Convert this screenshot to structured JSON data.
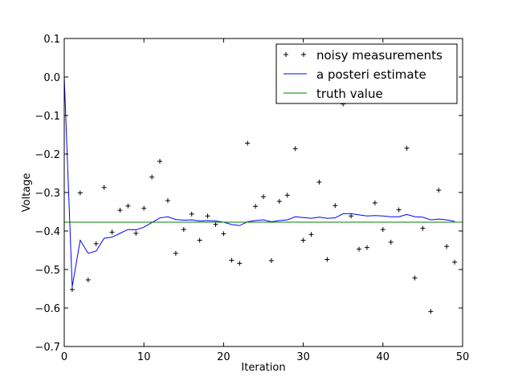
{
  "chart_data": {
    "type": "line",
    "title": "",
    "xlabel": "Iteration",
    "ylabel": "Voltage",
    "xlim": [
      0,
      50
    ],
    "ylim": [
      -0.7,
      0.1
    ],
    "x_ticks": [
      0,
      10,
      20,
      30,
      40,
      50
    ],
    "x_tick_labels": [
      "0",
      "10",
      "20",
      "30",
      "40",
      "50"
    ],
    "y_ticks": [
      -0.7,
      -0.6,
      -0.5,
      -0.4,
      -0.3,
      -0.2,
      -0.1,
      0.0,
      0.1
    ],
    "y_tick_labels": [
      "−0.7",
      "−0.6",
      "−0.5",
      "−0.4",
      "−0.3",
      "−0.2",
      "−0.1",
      "0.0",
      "0.1"
    ],
    "grid": false,
    "legend_position": "top-right",
    "series": [
      {
        "name": "noisy measurements",
        "style": "marker-plus",
        "color": "#000000",
        "x": [
          1,
          2,
          3,
          4,
          5,
          6,
          7,
          8,
          9,
          10,
          11,
          12,
          13,
          14,
          15,
          16,
          17,
          18,
          19,
          20,
          21,
          22,
          23,
          24,
          25,
          26,
          27,
          28,
          29,
          30,
          31,
          32,
          33,
          34,
          35,
          36,
          37,
          38,
          39,
          40,
          41,
          42,
          43,
          44,
          45,
          46,
          47,
          48,
          49
        ],
        "y": [
          -0.552,
          -0.301,
          -0.527,
          -0.433,
          -0.287,
          -0.403,
          -0.346,
          -0.335,
          -0.406,
          -0.341,
          -0.26,
          -0.219,
          -0.321,
          -0.458,
          -0.396,
          -0.356,
          -0.424,
          -0.361,
          -0.383,
          -0.407,
          -0.476,
          -0.484,
          -0.172,
          -0.336,
          -0.311,
          -0.477,
          -0.323,
          -0.307,
          -0.186,
          -0.424,
          -0.409,
          -0.273,
          -0.474,
          -0.334,
          -0.07,
          -0.361,
          -0.447,
          -0.443,
          -0.327,
          -0.396,
          -0.429,
          -0.345,
          -0.185,
          -0.522,
          -0.393,
          -0.609,
          -0.294,
          -0.44,
          -0.481
        ]
      },
      {
        "name": "a posteri estimate",
        "style": "line",
        "color": "#0000ff",
        "x": [
          0,
          1,
          2,
          3,
          4,
          5,
          6,
          7,
          8,
          9,
          10,
          11,
          12,
          13,
          14,
          15,
          16,
          17,
          18,
          19,
          20,
          21,
          22,
          23,
          24,
          25,
          26,
          27,
          28,
          29,
          30,
          31,
          32,
          33,
          34,
          35,
          36,
          37,
          38,
          39,
          40,
          41,
          42,
          43,
          44,
          45,
          46,
          47,
          48,
          49
        ],
        "y": [
          0.0,
          -0.545,
          -0.424,
          -0.458,
          -0.452,
          -0.419,
          -0.416,
          -0.406,
          -0.396,
          -0.397,
          -0.39,
          -0.378,
          -0.366,
          -0.363,
          -0.37,
          -0.372,
          -0.371,
          -0.374,
          -0.373,
          -0.374,
          -0.377,
          -0.383,
          -0.386,
          -0.376,
          -0.373,
          -0.371,
          -0.376,
          -0.373,
          -0.371,
          -0.363,
          -0.365,
          -0.367,
          -0.364,
          -0.367,
          -0.366,
          -0.355,
          -0.355,
          -0.358,
          -0.361,
          -0.36,
          -0.361,
          -0.363,
          -0.363,
          -0.357,
          -0.363,
          -0.364,
          -0.371,
          -0.369,
          -0.371,
          -0.375
        ]
      },
      {
        "name": "truth value",
        "style": "line",
        "color": "#008000",
        "x": [
          0,
          50
        ],
        "y": [
          -0.377,
          -0.377
        ]
      }
    ]
  }
}
